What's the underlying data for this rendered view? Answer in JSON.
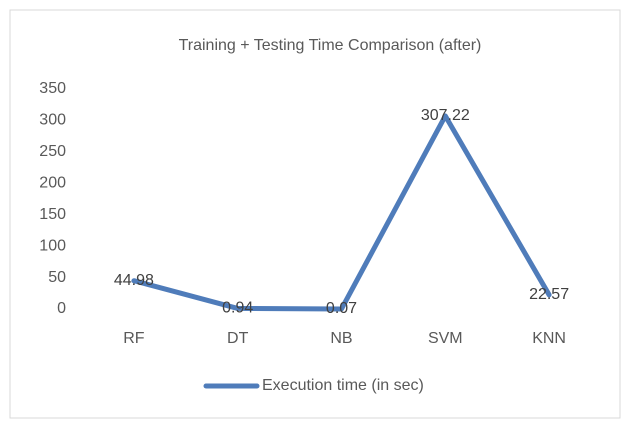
{
  "chart_data": {
    "type": "line",
    "title": "Training + Testing Time Comparison (after)",
    "categories": [
      "RF",
      "DT",
      "NB",
      "SVM",
      "KNN"
    ],
    "series": [
      {
        "name": "Execution time (in sec)",
        "color": "#4f7cba",
        "values": [
          44.98,
          0.94,
          0.07,
          307.22,
          22.57
        ]
      }
    ],
    "ylim": [
      0,
      350
    ],
    "yticks": [
      0,
      50,
      100,
      150,
      200,
      250,
      300,
      350
    ],
    "grid": false,
    "legend": "bottom",
    "data_labels": true
  }
}
